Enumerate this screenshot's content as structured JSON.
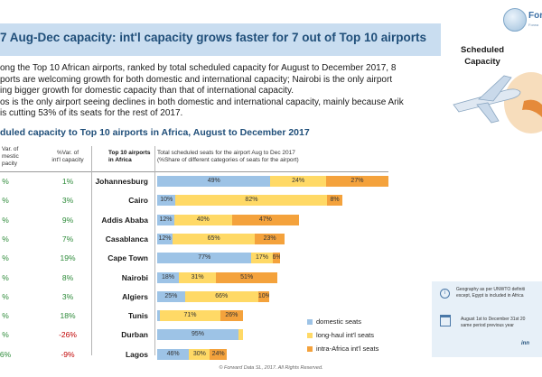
{
  "header": {
    "title": "7 Aug-Dec capacity: int'l capacity grows faster for 7 out of Top 10 airports"
  },
  "logo": {
    "text": "Forw",
    "subtext": "Forwa"
  },
  "bullets": [
    "ong the Top 10 African airports, ranked by total scheduled capacity for August to December 2017, 8",
    "ports are welcoming growth for both domestic and international capacity; Nairobi is the only airport",
    "ing bigger growth for domestic capacity than that of international capacity.",
    "os is the only airport seeing declines in both domestic and international capacity, mainly because Arik",
    "is cutting 53% of its seats for the rest of 2017."
  ],
  "side_label": {
    "line1": "Scheduled",
    "line2": "Capacity"
  },
  "subtitle": "duled capacity to Top 10 airports in Africa, August to December 2017",
  "columns": {
    "dom": [
      "Var. of",
      "mestic",
      "pacity"
    ],
    "intl": [
      "%Var. of",
      "int'l capacity"
    ],
    "airport": [
      "Top 10 airports",
      "in Africa"
    ],
    "share": [
      "Total scheduled seats for the airport Aug to Dec 2017",
      "(%Share of different categories of seats for the airport)"
    ]
  },
  "rows": [
    {
      "dom": "%",
      "intl": "1%",
      "airport": "Johannesburg",
      "labels": [
        "49%",
        "24%",
        "27%"
      ]
    },
    {
      "dom": "%",
      "intl": "3%",
      "airport": "Cairo",
      "labels": [
        "10%",
        "82%",
        "8%"
      ]
    },
    {
      "dom": "%",
      "intl": "9%",
      "airport": "Addis Ababa",
      "labels": [
        "12%",
        "40%",
        "47%"
      ]
    },
    {
      "dom": "%",
      "intl": "7%",
      "airport": "Casablanca",
      "labels": [
        "12%",
        "65%",
        "23%"
      ]
    },
    {
      "dom": "%",
      "intl": "19%",
      "airport": "Cape Town",
      "labels": [
        "77%",
        "17%",
        "6%"
      ]
    },
    {
      "dom": "%",
      "intl": "8%",
      "airport": "Nairobi",
      "labels": [
        "18%",
        "31%",
        "51%"
      ]
    },
    {
      "dom": "%",
      "intl": "3%",
      "airport": "Algiers",
      "labels": [
        "25%",
        "66%",
        "10%"
      ]
    },
    {
      "dom": "%",
      "intl": "18%",
      "airport": "Tunis",
      "labels": [
        "",
        "71%",
        "26%"
      ]
    },
    {
      "dom": "%",
      "intl": "-26%",
      "airport": "Durban",
      "labels": [
        "95%",
        "",
        ""
      ]
    },
    {
      "dom": "6%",
      "intl": "-9%",
      "airport": "Lagos",
      "labels": [
        "46%",
        "30%",
        "24%"
      ]
    }
  ],
  "chart_data": {
    "type": "bar",
    "title": "duled capacity to Top 10 airports in Africa, August to December 2017",
    "categories": [
      "Johannesburg",
      "Cairo",
      "Addis Ababa",
      "Casablanca",
      "Cape Town",
      "Nairobi",
      "Algiers",
      "Tunis",
      "Durban",
      "Lagos"
    ],
    "series": [
      {
        "name": "domestic seats",
        "values": [
          49,
          10,
          12,
          12,
          77,
          18,
          25,
          3,
          95,
          46
        ],
        "color": "#9dc3e6"
      },
      {
        "name": "long-haul int'l seats",
        "values": [
          24,
          82,
          40,
          65,
          17,
          31,
          66,
          71,
          5,
          30
        ],
        "color": "#ffd966"
      },
      {
        "name": "intra-Africa int'l seats",
        "values": [
          27,
          8,
          47,
          23,
          6,
          51,
          10,
          26,
          0,
          24
        ],
        "color": "#f4a23c"
      }
    ],
    "relative_total": [
      1.0,
      0.8,
      0.62,
      0.55,
      0.53,
      0.52,
      0.48,
      0.37,
      0.37,
      0.3
    ],
    "stacked": true,
    "orientation": "horizontal",
    "legend_position": "bottom-right"
  },
  "legend": [
    "domestic seats",
    "long-haul int'l seats",
    "intra-Africa int'l seats"
  ],
  "info": {
    "geo": [
      "Geography as per UNWTO definiti",
      "except, Egypt is included in Africa"
    ],
    "period": [
      "August 1st to December 31st 20",
      "same period previous year"
    ]
  },
  "brand": "inn",
  "footer": "© Forward Data SL, 2017. All Rights Reserved."
}
